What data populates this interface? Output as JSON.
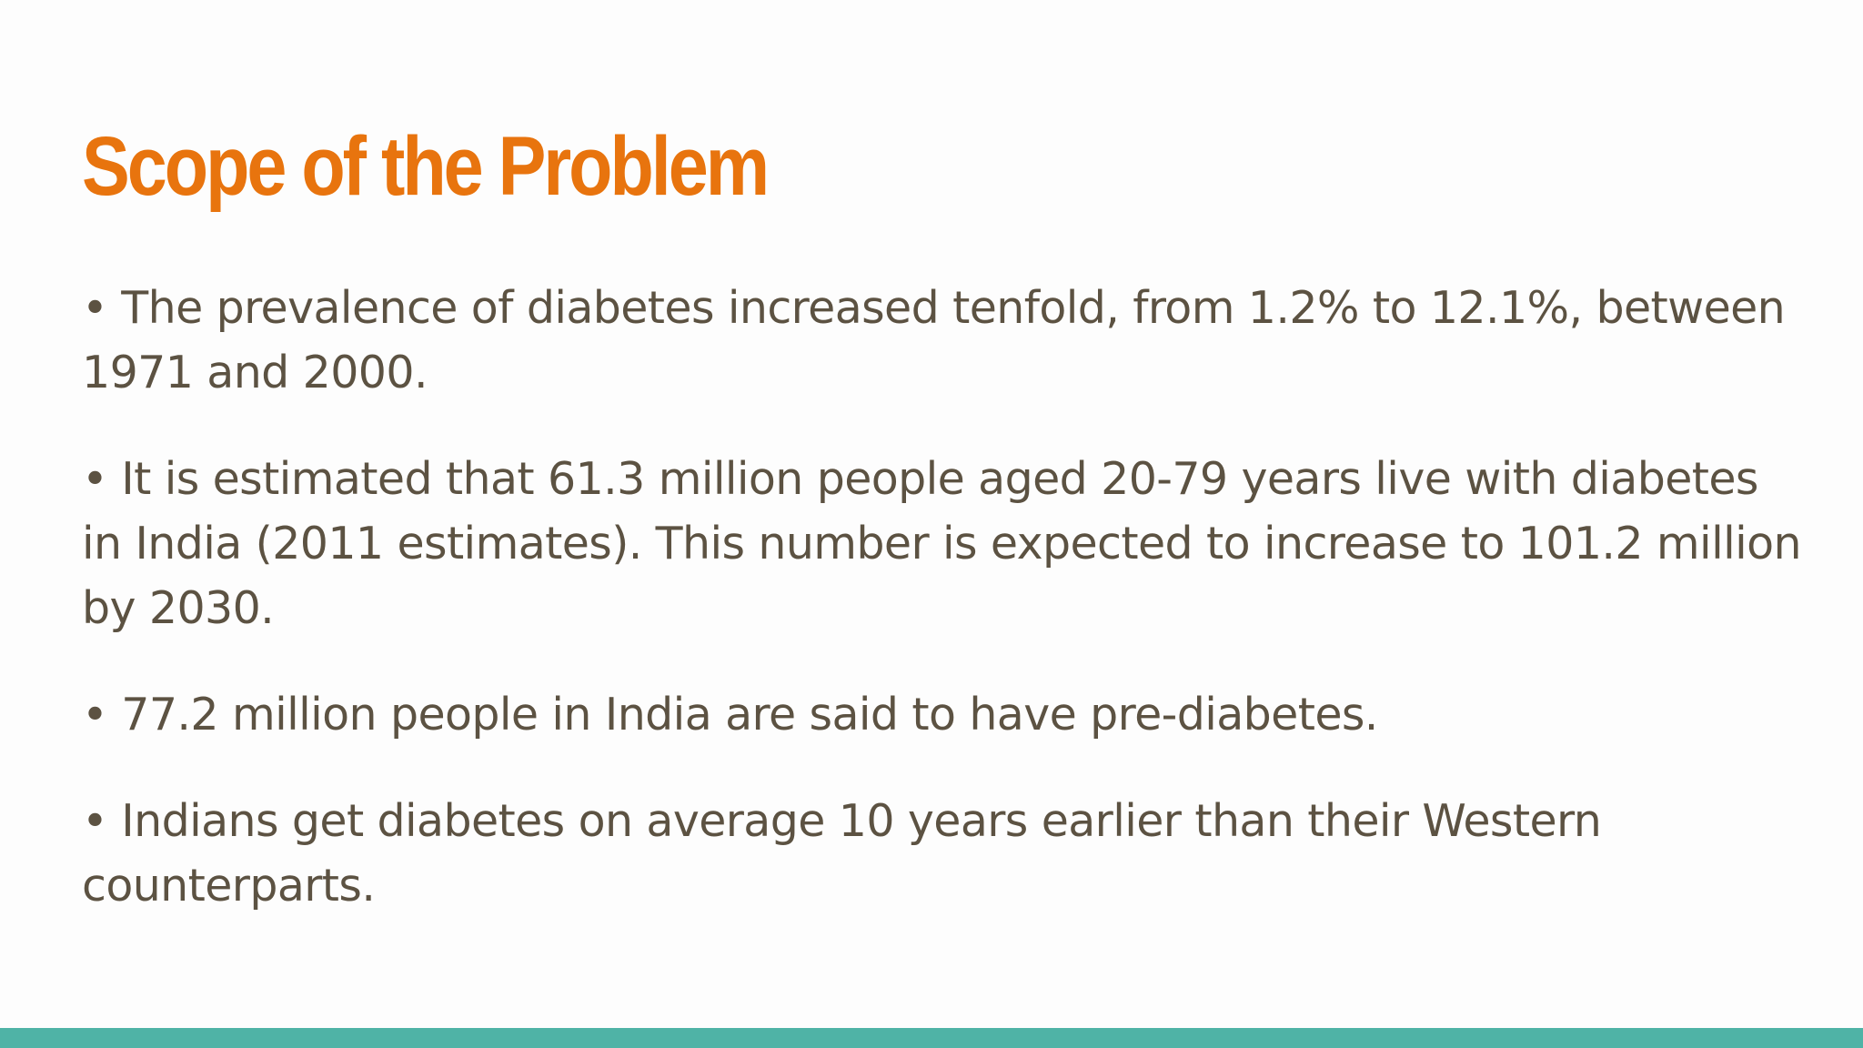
{
  "colors": {
    "title": "#e8740e",
    "body_text": "#5c5242",
    "bar": "#4fb3a6",
    "background": "#fdfdfd"
  },
  "slide": {
    "title": "Scope of the Problem",
    "bullets": [
      "• The prevalence of diabetes increased tenfold, from 1.2% to 12.1%, between 1971 and 2000.",
      "• It is estimated that 61.3 million people aged 20-79 years live with diabetes in India (2011 estimates). This number is expected to increase to 101.2 million by 2030.",
      "• 77.2 million people in India are said to have pre-diabetes.",
      "• Indians get diabetes on average 10 years earlier than their Western counterparts."
    ]
  }
}
